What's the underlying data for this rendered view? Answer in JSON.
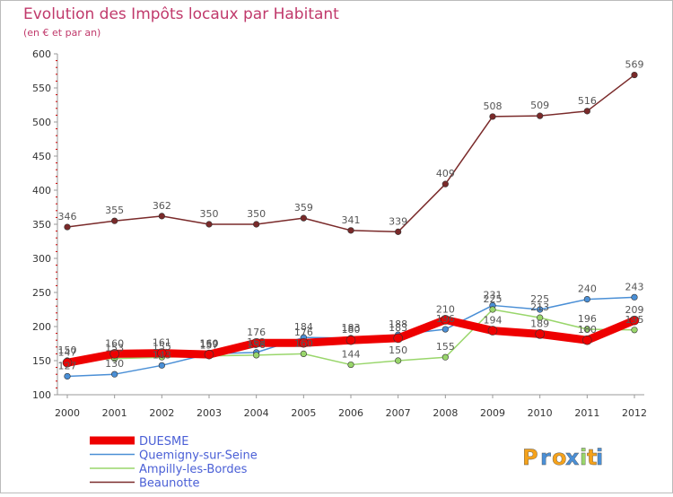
{
  "chart_data": {
    "type": "line",
    "title": "Evolution des Impôts locaux par Habitant",
    "subtitle": "(en € et par an)",
    "xlabel": "",
    "ylabel": "",
    "ylim": [
      100,
      600
    ],
    "yticks": [
      100,
      150,
      200,
      250,
      300,
      350,
      400,
      450,
      500,
      550,
      600
    ],
    "x": [
      "2000",
      "2001",
      "2002",
      "2003",
      "2004",
      "2005",
      "2006",
      "2007",
      "2008",
      "2009",
      "2010",
      "2011",
      "2012"
    ],
    "grid": false,
    "legend_position": "bottom-left",
    "series": [
      {
        "name": "Beaunotte",
        "color": "#7a2a2a",
        "values": [
          346,
          355,
          362,
          350,
          350,
          359,
          341,
          339,
          409,
          508,
          509,
          516,
          569
        ]
      },
      {
        "name": "Quemigny-sur-Seine",
        "color": "#4a8fd6",
        "values": [
          127,
          130,
          143,
          160,
          162,
          184,
          183,
          188,
          196,
          231,
          225,
          240,
          243
        ]
      },
      {
        "name": "Ampilly-les-Bordes",
        "color": "#99d66b",
        "values": [
          150,
          153,
          155,
          157,
          158,
          160,
          144,
          150,
          155,
          225,
          213,
          196,
          195
        ]
      },
      {
        "name": "DUESME",
        "color": "#ee0000",
        "values": [
          147,
          160,
          161,
          159,
          176,
          176,
          180,
          183,
          210,
          194,
          189,
          180,
          209
        ]
      }
    ],
    "legend": [
      "DUESME",
      "Quemigny-sur-Seine",
      "Ampilly-les-Bordes",
      "Beaunotte"
    ]
  },
  "brand": {
    "logo_text": "Proxiti",
    "letters": [
      "P",
      "r",
      "o",
      "x",
      "i",
      "t",
      "i"
    ],
    "colors": [
      "#f5a21b",
      "#4a8fd6",
      "#f5a21b",
      "#4a8fd6",
      "#99d66b",
      "#f5a21b",
      "#4a8fd6"
    ]
  }
}
